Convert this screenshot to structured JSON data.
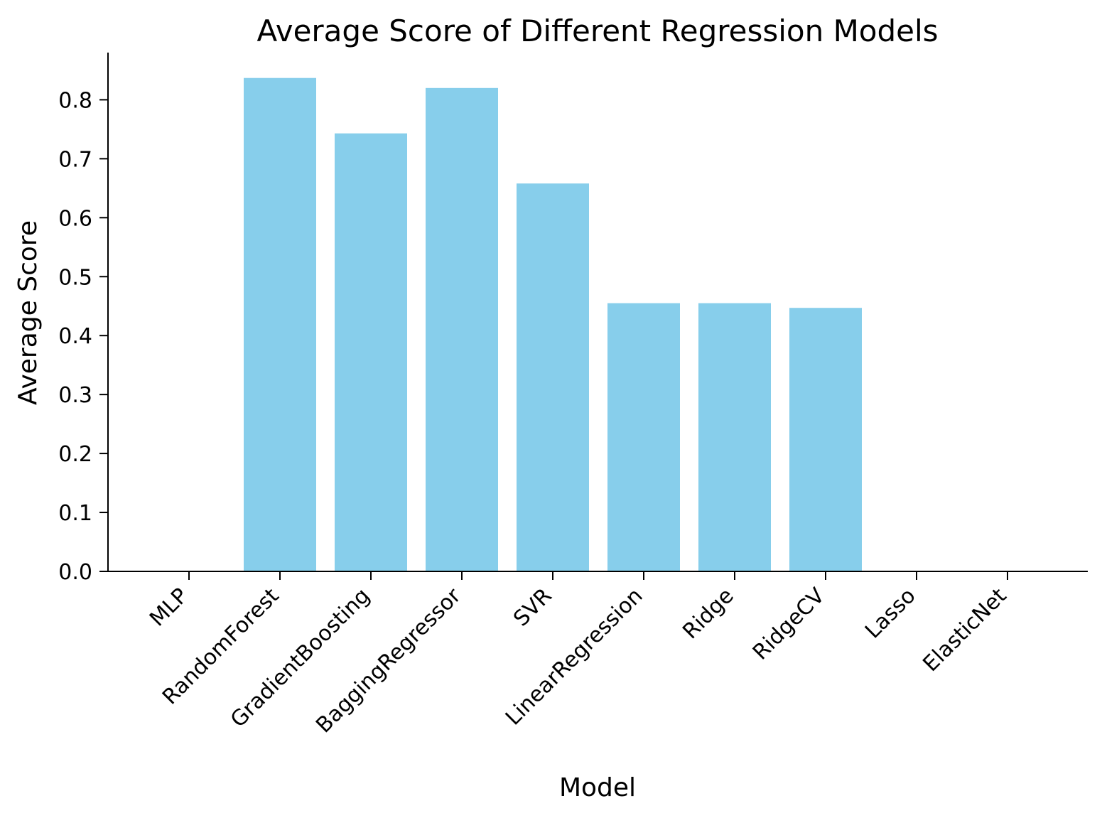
{
  "chart_data": {
    "type": "bar",
    "title": "Average Score of Different Regression Models",
    "xlabel": "Model",
    "ylabel": "Average Score",
    "categories": [
      "MLP",
      "RandomForest",
      "GradientBoosting",
      "BaggingRegressor",
      "SVR",
      "LinearRegression",
      "Ridge",
      "RidgeCV",
      "Lasso",
      "ElasticNet"
    ],
    "values": [
      0.0,
      0.837,
      0.743,
      0.82,
      0.658,
      0.455,
      0.455,
      0.447,
      0.0,
      0.0
    ],
    "ylim": [
      0,
      0.88
    ],
    "yticks": [
      "0.0",
      "0.1",
      "0.2",
      "0.3",
      "0.4",
      "0.5",
      "0.6",
      "0.7",
      "0.8"
    ],
    "grid": false,
    "legend": "none",
    "colors": {
      "bar": "#87CEEB",
      "axis": "#000000",
      "text": "#000000"
    }
  }
}
